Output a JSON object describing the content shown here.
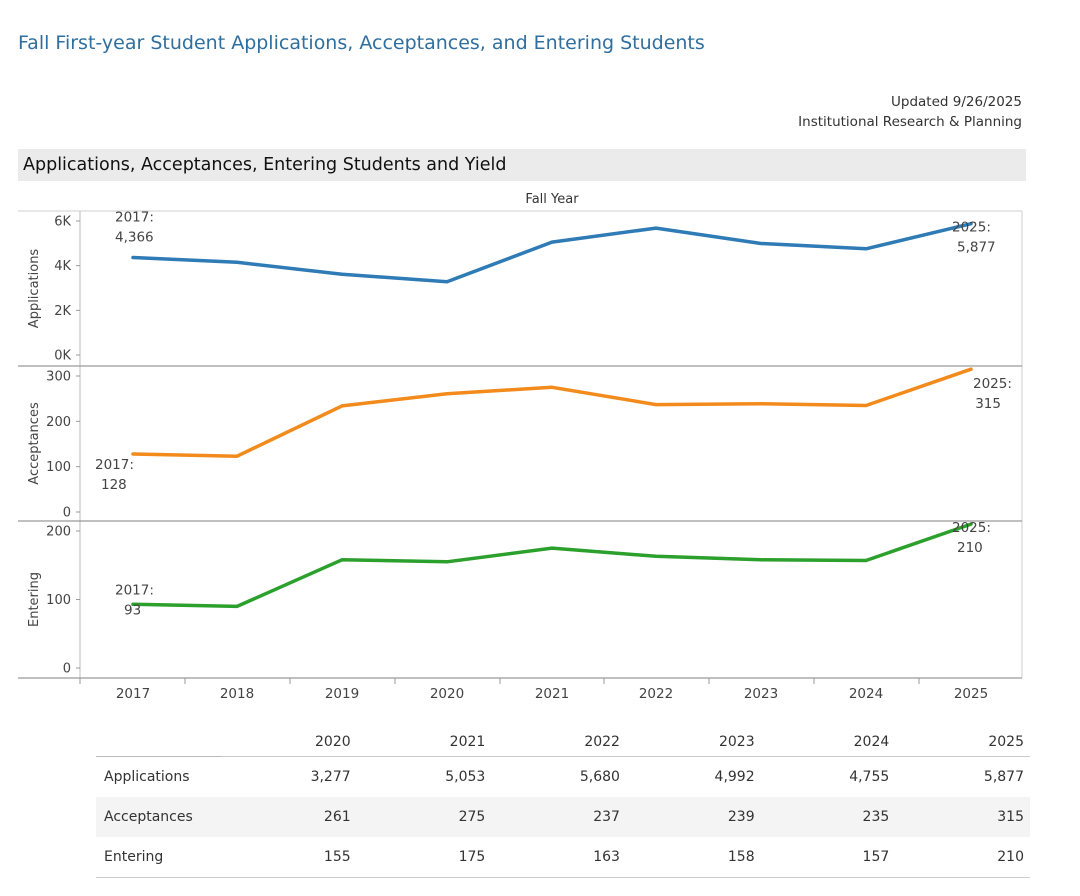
{
  "page": {
    "title": "Fall First-year Student Applications, Acceptances, and Entering Students",
    "updated": "Updated 9/26/2025",
    "department": "Institutional Research & Planning",
    "section_title": "Applications, Acceptances, Entering Students and Yield"
  },
  "chart_data": {
    "type": "line",
    "x_axis_title": "Fall Year",
    "x": [
      "2017",
      "2018",
      "2019",
      "2020",
      "2021",
      "2022",
      "2023",
      "2024",
      "2025"
    ],
    "panels": [
      {
        "name": "Applications",
        "ylabel": "Applications",
        "color": "#2e7bb6",
        "ylim": [
          0,
          6200
        ],
        "ticks": [
          0,
          2000,
          4000,
          6000
        ],
        "tick_labels": [
          "0K",
          "2K",
          "4K",
          "6K"
        ],
        "values": [
          4366,
          4150,
          3620,
          3277,
          5053,
          5680,
          4992,
          4755,
          5877
        ],
        "annotations": [
          {
            "index": 0,
            "label": "2017:",
            "value_label": "4,366"
          },
          {
            "index": 8,
            "label": "2025:",
            "value_label": "5,877"
          }
        ]
      },
      {
        "name": "Acceptances",
        "ylabel": "Acceptances",
        "color": "#f28a1c",
        "ylim": [
          0,
          330
        ],
        "ticks": [
          0,
          100,
          200,
          300
        ],
        "tick_labels": [
          "0",
          "100",
          "200",
          "300"
        ],
        "values": [
          128,
          123,
          234,
          261,
          275,
          237,
          239,
          235,
          315
        ],
        "annotations": [
          {
            "index": 0,
            "label": "2017:",
            "value_label": "128"
          },
          {
            "index": 8,
            "label": "2025:",
            "value_label": "315"
          }
        ]
      },
      {
        "name": "Entering",
        "ylabel": "Entering",
        "color": "#2ca02c",
        "ylim": [
          0,
          225
        ],
        "ticks": [
          0,
          100,
          200
        ],
        "tick_labels": [
          "0",
          "100",
          "200"
        ],
        "values": [
          93,
          90,
          158,
          155,
          175,
          163,
          158,
          157,
          210
        ],
        "annotations": [
          {
            "index": 0,
            "label": "2017:",
            "value_label": "93"
          },
          {
            "index": 8,
            "label": "2025:",
            "value_label": "210"
          }
        ]
      }
    ],
    "table": {
      "columns": [
        "2020",
        "2021",
        "2022",
        "2023",
        "2024",
        "2025"
      ],
      "rows": [
        {
          "label": "Applications",
          "values": [
            "3,277",
            "5,053",
            "5,680",
            "4,992",
            "4,755",
            "5,877"
          ]
        },
        {
          "label": "Acceptances",
          "values": [
            "261",
            "275",
            "237",
            "239",
            "235",
            "315"
          ]
        },
        {
          "label": "Entering",
          "values": [
            "155",
            "175",
            "163",
            "158",
            "157",
            "210"
          ]
        }
      ]
    }
  }
}
